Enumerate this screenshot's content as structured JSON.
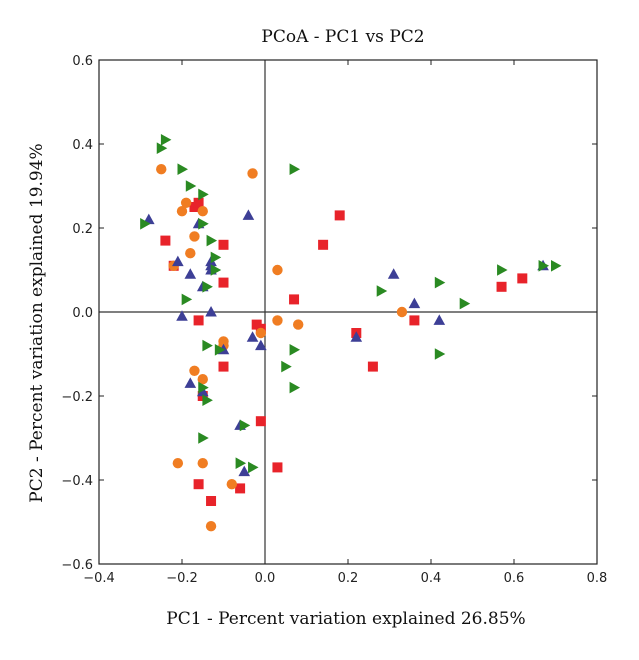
{
  "chart_data": {
    "type": "scatter",
    "title": "PCoA - PC1 vs PC2",
    "xlabel": "PC1 - Percent variation explained 26.85%",
    "ylabel": "PC2 - Percent variation explained 19.94%",
    "xlim": [
      -0.4,
      0.8
    ],
    "ylim": [
      -0.6,
      0.6
    ],
    "x_ticks": [
      -0.4,
      -0.2,
      0.0,
      0.2,
      0.4,
      0.6,
      0.8
    ],
    "y_ticks": [
      -0.6,
      -0.4,
      -0.2,
      0.0,
      0.2,
      0.4,
      0.6
    ],
    "x_tick_labels": [
      "−0.4",
      "−0.2",
      "0.0",
      "0.2",
      "0.4",
      "0.6",
      "0.8"
    ],
    "y_tick_labels": [
      "−0.6",
      "−0.4",
      "−0.2",
      "0.0",
      "0.2",
      "0.4",
      "0.6"
    ],
    "zero_lines": true,
    "grid": false,
    "series": [
      {
        "marker": "square",
        "color": "#e8232a",
        "x": [
          -0.24,
          -0.22,
          -0.17,
          -0.16,
          -0.15,
          -0.1,
          -0.1,
          -0.1,
          -0.02,
          -0.01,
          -0.16,
          -0.16,
          -0.13,
          -0.06,
          -0.01,
          0.03,
          0.07,
          0.14,
          0.18,
          0.22,
          0.26,
          0.36,
          0.57,
          0.62
        ],
        "y": [
          0.17,
          0.11,
          0.25,
          0.26,
          -0.2,
          0.16,
          0.07,
          -0.13,
          -0.03,
          -0.04,
          -0.02,
          -0.41,
          -0.45,
          -0.42,
          -0.26,
          -0.37,
          0.03,
          0.16,
          0.23,
          -0.05,
          -0.13,
          -0.02,
          0.06,
          0.08
        ]
      },
      {
        "marker": "circle",
        "color": "#f07d22",
        "x": [
          -0.25,
          -0.22,
          -0.19,
          -0.18,
          -0.17,
          -0.15,
          -0.2,
          -0.17,
          -0.15,
          -0.1,
          -0.1,
          -0.03,
          -0.01,
          -0.21,
          -0.15,
          -0.13,
          -0.08,
          0.03,
          0.03,
          0.08,
          0.33
        ],
        "y": [
          0.34,
          0.11,
          0.26,
          0.14,
          0.18,
          0.24,
          0.24,
          -0.14,
          -0.16,
          -0.07,
          -0.08,
          0.33,
          -0.05,
          -0.36,
          -0.36,
          -0.51,
          -0.41,
          0.1,
          -0.02,
          -0.03,
          0.0
        ]
      },
      {
        "marker": "triangle-up",
        "color": "#3d3f96",
        "x": [
          -0.28,
          -0.21,
          -0.18,
          -0.16,
          -0.15,
          -0.13,
          -0.13,
          -0.13,
          -0.2,
          -0.13,
          -0.1,
          -0.04,
          -0.18,
          -0.15,
          -0.05,
          -0.06,
          -0.03,
          -0.01,
          0.22,
          0.31,
          0.36,
          0.42,
          0.67
        ],
        "y": [
          0.22,
          0.12,
          0.09,
          0.21,
          0.06,
          0.11,
          0.1,
          0.12,
          -0.01,
          0.0,
          -0.09,
          0.23,
          -0.17,
          -0.19,
          -0.38,
          -0.27,
          -0.06,
          -0.08,
          -0.06,
          0.09,
          0.02,
          -0.02,
          0.11
        ]
      },
      {
        "marker": "triangle-right",
        "color": "#2a8a22",
        "x": [
          -0.24,
          -0.25,
          -0.2,
          -0.18,
          -0.15,
          -0.15,
          -0.13,
          -0.12,
          -0.12,
          -0.29,
          -0.19,
          -0.14,
          -0.14,
          -0.11,
          -0.15,
          -0.14,
          -0.15,
          -0.06,
          -0.05,
          -0.03,
          0.07,
          0.05,
          0.07,
          0.07,
          0.28,
          0.42,
          0.42,
          0.48,
          0.57,
          0.7,
          0.67
        ],
        "y": [
          0.41,
          0.39,
          0.34,
          0.3,
          0.28,
          0.21,
          0.17,
          0.13,
          0.1,
          0.21,
          0.03,
          0.06,
          -0.08,
          -0.09,
          -0.18,
          -0.21,
          -0.3,
          -0.36,
          -0.27,
          -0.37,
          0.34,
          -0.13,
          -0.09,
          -0.18,
          0.05,
          0.07,
          -0.1,
          0.02,
          0.1,
          0.11,
          0.11
        ]
      }
    ]
  }
}
